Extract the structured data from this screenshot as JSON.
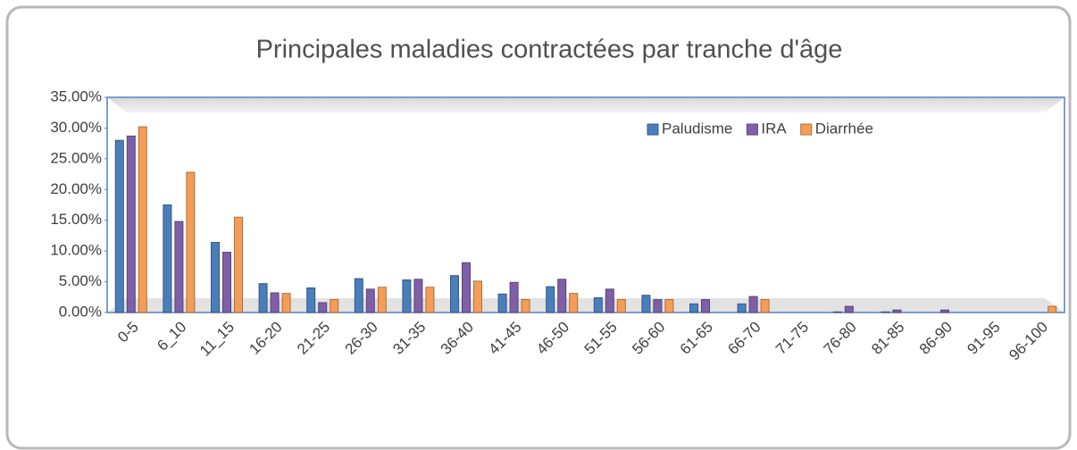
{
  "chart_data": {
    "type": "bar",
    "title": "Principales maladies contractées par tranche d'âge",
    "categories": [
      "0-5",
      "6_10",
      "11_15",
      "16-20",
      "21-25",
      "26-30",
      "31-35",
      "36-40",
      "41-45",
      "46-50",
      "51-55",
      "56-60",
      "61-65",
      "66-70",
      "71-75",
      "76-80",
      "81-85",
      "86-90",
      "91-95",
      "96-100"
    ],
    "series": [
      {
        "name": "Paludisme",
        "color": "#4a7ebb",
        "values": [
          28.0,
          17.5,
          11.4,
          4.7,
          4.0,
          5.5,
          5.3,
          6.0,
          3.0,
          4.2,
          2.4,
          2.8,
          1.4,
          1.4,
          0,
          0.1,
          0.1,
          0,
          0,
          0
        ]
      },
      {
        "name": "IRA",
        "color": "#7f5fa8",
        "values": [
          28.7,
          14.8,
          9.8,
          3.2,
          1.6,
          3.8,
          5.4,
          8.1,
          4.9,
          5.4,
          3.8,
          2.1,
          2.1,
          2.6,
          0,
          1.0,
          0.4,
          0.4,
          0,
          0
        ]
      },
      {
        "name": "Diarrhée",
        "color": "#f59d56",
        "values": [
          30.2,
          22.8,
          15.5,
          3.1,
          2.1,
          4.1,
          4.1,
          5.1,
          2.1,
          3.1,
          2.1,
          2.1,
          0,
          2.1,
          0,
          0,
          0,
          0,
          0,
          1.0
        ]
      }
    ],
    "ylim": [
      0,
      35
    ],
    "yticks": [
      {
        "value": 0,
        "label": "0.00%"
      },
      {
        "value": 5,
        "label": "5.00%"
      },
      {
        "value": 10,
        "label": "10.00%"
      },
      {
        "value": 15,
        "label": "15.00%"
      },
      {
        "value": 20,
        "label": "20.00%"
      },
      {
        "value": 25,
        "label": "25.00%"
      },
      {
        "value": 30,
        "label": "30.00%"
      },
      {
        "value": 35,
        "label": "35.00%"
      }
    ],
    "legend": "top-right"
  }
}
